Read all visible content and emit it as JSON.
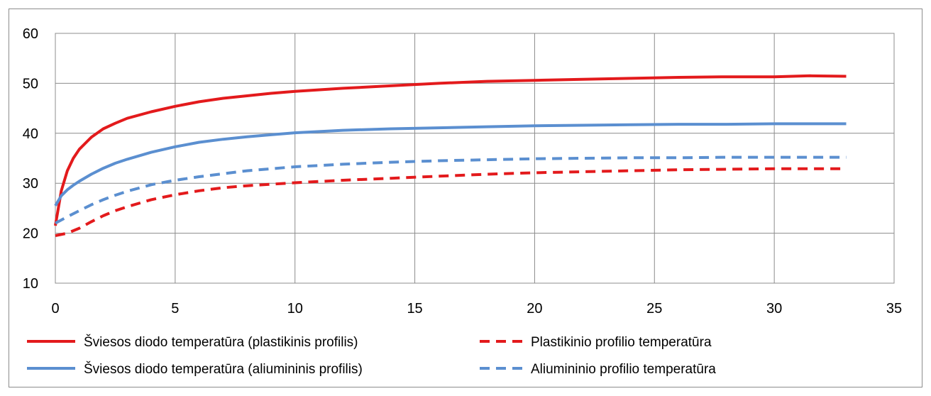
{
  "chart_data": {
    "type": "line",
    "title": "",
    "xlabel": "",
    "ylabel": "",
    "xlim": [
      0,
      35
    ],
    "ylim": [
      10,
      60
    ],
    "xticks": [
      "0",
      "5",
      "10",
      "15",
      "20",
      "25",
      "30",
      "35"
    ],
    "yticks": [
      "10",
      "20",
      "30",
      "40",
      "50",
      "60"
    ],
    "grid": true,
    "legend_position": "bottom",
    "series": [
      {
        "name": "Šviesos diodo temperatūra (plastikinis profilis)",
        "color": "#e31a1c",
        "style": "solid",
        "x": [
          0,
          0.25,
          0.5,
          0.75,
          1,
          1.5,
          2,
          2.5,
          3,
          4,
          5,
          6,
          7,
          8,
          9,
          10,
          12,
          14,
          16,
          18,
          20,
          22,
          24,
          26,
          28,
          30,
          31.5,
          33
        ],
        "y": [
          21.5,
          28.5,
          32.5,
          35.0,
          36.8,
          39.2,
          40.9,
          42.0,
          43.0,
          44.3,
          45.4,
          46.3,
          47.0,
          47.5,
          48.0,
          48.4,
          49.0,
          49.5,
          50.0,
          50.4,
          50.6,
          50.8,
          51.0,
          51.2,
          51.3,
          51.3,
          51.5,
          51.4
        ]
      },
      {
        "name": "Šviesos diodo temperatūra (aliumininis profilis)",
        "color": "#5b8fd0",
        "style": "solid",
        "x": [
          0,
          0.25,
          0.5,
          0.75,
          1,
          1.5,
          2,
          2.5,
          3,
          4,
          5,
          6,
          7,
          8,
          9,
          10,
          12,
          14,
          16,
          18,
          20,
          22,
          24,
          26,
          28,
          30,
          33
        ],
        "y": [
          25.5,
          27.5,
          28.7,
          29.6,
          30.4,
          31.8,
          33.0,
          34.0,
          34.8,
          36.2,
          37.3,
          38.2,
          38.8,
          39.3,
          39.7,
          40.1,
          40.6,
          40.9,
          41.1,
          41.3,
          41.5,
          41.6,
          41.7,
          41.8,
          41.8,
          41.9,
          41.9
        ]
      },
      {
        "name": "Plastikinio profilio temperatūra",
        "color": "#e31a1c",
        "style": "dashed",
        "x": [
          0,
          0.5,
          1,
          1.5,
          2,
          2.5,
          3,
          4,
          5,
          6,
          7,
          8,
          9,
          10,
          12,
          14,
          16,
          18,
          20,
          22,
          24,
          26,
          28,
          30,
          33
        ],
        "y": [
          19.5,
          20.0,
          21.0,
          22.3,
          23.5,
          24.5,
          25.3,
          26.7,
          27.7,
          28.5,
          29.1,
          29.5,
          29.8,
          30.1,
          30.6,
          31.0,
          31.4,
          31.8,
          32.1,
          32.3,
          32.5,
          32.7,
          32.8,
          32.9,
          32.9
        ]
      },
      {
        "name": "Aliumininio profilio temperatūra",
        "color": "#5b8fd0",
        "style": "dashed",
        "x": [
          0,
          0.5,
          1,
          1.5,
          2,
          2.5,
          3,
          4,
          5,
          6,
          7,
          8,
          9,
          10,
          12,
          14,
          16,
          18,
          20,
          22,
          24,
          26,
          28,
          30,
          33
        ],
        "y": [
          22.0,
          23.3,
          24.5,
          25.7,
          26.7,
          27.6,
          28.4,
          29.7,
          30.6,
          31.3,
          31.9,
          32.5,
          32.9,
          33.3,
          33.8,
          34.2,
          34.5,
          34.7,
          34.9,
          35.0,
          35.1,
          35.1,
          35.2,
          35.2,
          35.2
        ]
      }
    ]
  }
}
